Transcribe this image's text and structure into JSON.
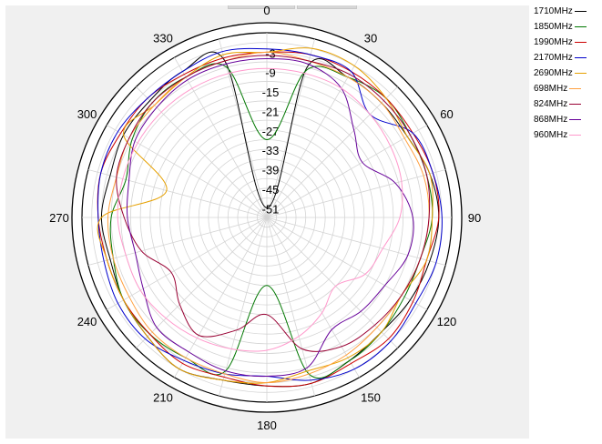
{
  "chart_data": {
    "type": "polar-line",
    "angular_ticks": [
      "0",
      "30",
      "60",
      "90",
      "120",
      "150",
      "180",
      "210",
      "240",
      "270",
      "300",
      "330"
    ],
    "radial_ticks": [
      "-3",
      "-9",
      "-15",
      "-21",
      "-27",
      "-33",
      "-39",
      "-45",
      "-51"
    ],
    "r_range": [
      -54,
      3
    ],
    "grid": true,
    "legend_position": "right",
    "series": [
      {
        "name": "1710MHz",
        "color": "#000000",
        "theta_deg": [
          0,
          15,
          30,
          45,
          60,
          75,
          90,
          105,
          120,
          135,
          150,
          165,
          180,
          195,
          210,
          225,
          240,
          255,
          270,
          285,
          300,
          315,
          330,
          345
        ],
        "r_db": [
          -51,
          -6,
          -4,
          -4,
          -4,
          -2,
          -1,
          -2,
          -3,
          -4,
          -3,
          -1,
          -2,
          -2,
          0,
          -2,
          -3,
          -4,
          -3,
          -4,
          -3,
          -3,
          -2,
          -4
        ]
      },
      {
        "name": "1850MHz",
        "color": "#007700",
        "theta_deg": [
          0,
          15,
          30,
          45,
          60,
          75,
          90,
          105,
          120,
          135,
          150,
          165,
          180,
          195,
          210,
          225,
          240,
          255,
          270,
          285,
          300,
          315,
          330,
          345
        ],
        "r_db": [
          -30,
          -7,
          -4,
          -2,
          -3,
          -3,
          -3,
          -5,
          -5,
          -4,
          -3,
          -4,
          -33,
          -5,
          -4,
          -3,
          -3,
          -5,
          -6,
          -9,
          -6,
          -4,
          -4,
          -6
        ]
      },
      {
        "name": "1990MHz",
        "color": "#cc0000",
        "theta_deg": [
          0,
          15,
          30,
          45,
          60,
          75,
          90,
          105,
          120,
          135,
          150,
          165,
          180,
          195,
          210,
          225,
          240,
          255,
          270,
          285,
          300,
          315,
          330,
          345
        ],
        "r_db": [
          -3,
          -2,
          -2,
          -2,
          -2,
          -1,
          -1,
          -3,
          -2,
          -1,
          -2,
          -1,
          -2,
          -3,
          -2,
          -3,
          -3,
          -3,
          -2,
          -1,
          -2,
          -2,
          -3,
          -3
        ]
      },
      {
        "name": "2170MHz",
        "color": "#0000cc",
        "theta_deg": [
          0,
          15,
          30,
          45,
          60,
          75,
          90,
          105,
          120,
          135,
          150,
          165,
          180,
          195,
          210,
          225,
          240,
          255,
          270,
          285,
          300,
          315,
          330,
          345
        ],
        "r_db": [
          -2,
          -2,
          -2,
          -9,
          -2,
          -1,
          0,
          0,
          -1,
          0,
          0,
          -2,
          -5,
          -4,
          -3,
          -1,
          -1,
          -2,
          -2,
          -1,
          -1,
          -2,
          -2,
          -1
        ]
      },
      {
        "name": "2690MHz",
        "color": "#e6a000",
        "theta_deg": [
          0,
          15,
          30,
          45,
          60,
          75,
          90,
          105,
          120,
          135,
          150,
          165,
          180,
          195,
          210,
          225,
          240,
          255,
          270,
          285,
          300,
          315,
          330,
          345
        ],
        "r_db": [
          -3,
          0,
          0,
          -2,
          -4,
          -2,
          -3,
          -3,
          -6,
          -4,
          -4,
          -5,
          -3,
          -2,
          0,
          -2,
          -3,
          -3,
          -3,
          -22,
          -3,
          -5,
          -4,
          -2
        ]
      },
      {
        "name": "698MHz",
        "color": "#ffa040",
        "theta_deg": [
          0,
          15,
          30,
          45,
          60,
          75,
          90,
          105,
          120,
          135,
          150,
          165,
          180,
          195,
          210,
          225,
          240,
          255,
          270,
          285,
          300,
          315,
          330,
          345
        ],
        "r_db": [
          -3,
          -4,
          -4,
          -4,
          -5,
          -4,
          -4,
          -5,
          -6,
          -6,
          -5,
          -4,
          -3,
          -4,
          -4,
          -4,
          -5,
          -5,
          -5,
          -6,
          -5,
          -5,
          -4,
          -4
        ]
      },
      {
        "name": "824MHz",
        "color": "#990033",
        "theta_deg": [
          0,
          15,
          30,
          45,
          60,
          75,
          90,
          105,
          120,
          135,
          150,
          165,
          180,
          195,
          210,
          225,
          240,
          255,
          270,
          285,
          300,
          315,
          330,
          345
        ],
        "r_db": [
          -4,
          -4,
          -3,
          -3,
          -3,
          -3,
          -4,
          -5,
          -6,
          -7,
          -8,
          -12,
          -24,
          -18,
          -12,
          -16,
          -20,
          -14,
          -10,
          -6,
          -5,
          -4,
          -4,
          -4
        ]
      },
      {
        "name": "868MHz",
        "color": "#660099",
        "theta_deg": [
          0,
          15,
          30,
          45,
          60,
          75,
          90,
          105,
          120,
          135,
          150,
          165,
          180,
          195,
          210,
          225,
          240,
          255,
          270,
          285,
          300,
          315,
          330,
          345
        ],
        "r_db": [
          -5,
          -5,
          -8,
          -16,
          -20,
          -13,
          -9,
          -9,
          -12,
          -13,
          -14,
          -6,
          -5,
          -5,
          -6,
          -6,
          -10,
          -12,
          -11,
          -10,
          -7,
          -6,
          -5,
          -5
        ]
      },
      {
        "name": "960MHz",
        "color": "#ff99cc",
        "theta_deg": [
          0,
          15,
          30,
          45,
          60,
          75,
          90,
          105,
          120,
          135,
          150,
          165,
          180,
          195,
          210,
          225,
          240,
          255,
          270,
          285,
          300,
          315,
          330,
          345
        ],
        "r_db": [
          -8,
          -8,
          -8,
          -9,
          -10,
          -11,
          -13,
          -17,
          -19,
          -24,
          -20,
          -16,
          -13,
          -12,
          -11,
          -10,
          -9,
          -9,
          -8,
          -8,
          -8,
          -8,
          -8,
          -8
        ]
      }
    ]
  }
}
